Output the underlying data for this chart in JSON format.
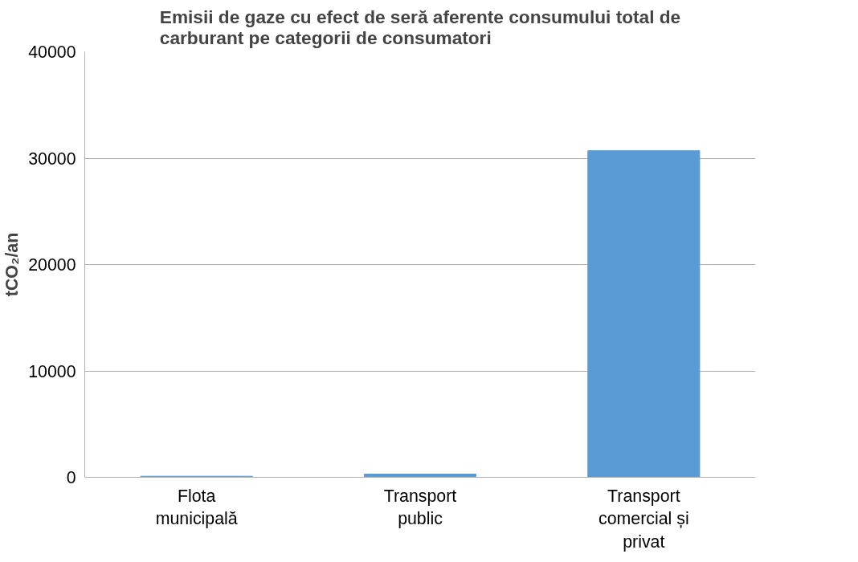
{
  "chart_data": {
    "type": "bar",
    "title": "Emisii de gaze cu efect de seră aferente consumului total de carburant pe categorii de consumatori",
    "ylabel": "tCO₂/an",
    "categories": [
      "Flota municipală",
      "Transport public",
      "Transport comercial și privat"
    ],
    "values": [
      100,
      300,
      30700
    ],
    "color": "#5b9bd5",
    "ylim": [
      0,
      40000
    ],
    "yticks": [
      0,
      10000,
      20000,
      30000,
      40000
    ],
    "grid": "y"
  }
}
